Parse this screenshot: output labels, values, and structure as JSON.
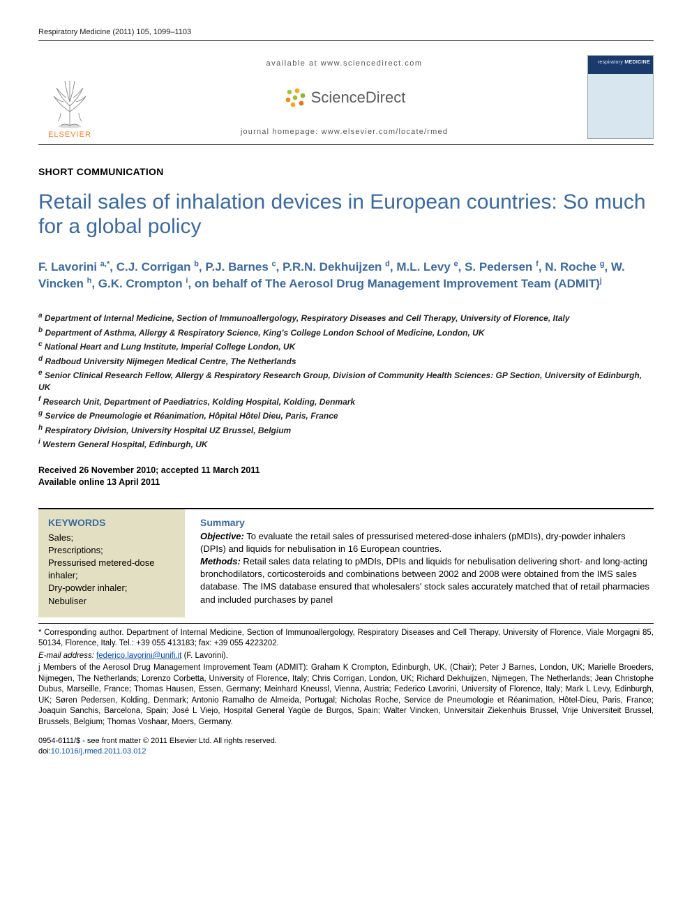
{
  "journal_ref": "Respiratory Medicine (2011) 105, 1099–1103",
  "masthead": {
    "available": "available at www.sciencedirect.com",
    "sd_text": "ScienceDirect",
    "homepage": "journal homepage: www.elsevier.com/locate/rmed",
    "elsevier": "ELSEVIER",
    "cover_small": "respiratory",
    "cover_bold": "MEDICINE"
  },
  "section_label": "SHORT COMMUNICATION",
  "title": "Retail sales of inhalation devices in European countries: So much for a global policy",
  "authors_html": "F. Lavorini <sup>a,*</sup>, C.J. Corrigan <sup>b</sup>, P.J. Barnes <sup>c</sup>, P.R.N. Dekhuijzen <sup>d</sup>, M.L. Levy <sup>e</sup>, S. Pedersen <sup>f</sup>, N. Roche <sup>g</sup>, W. Vincken <sup>h</sup>, G.K. Crompton <sup>i</sup>, on behalf of The Aerosol Drug Management Improvement Team (ADMIT)<sup>j</sup>",
  "affiliations": [
    "a Department of Internal Medicine, Section of Immunoallergology, Respiratory Diseases and Cell Therapy, University of Florence, Italy",
    "b Department of Asthma, Allergy & Respiratory Science, King's College London School of Medicine, London, UK",
    "c National Heart and Lung Institute, Imperial College London, UK",
    "d Radboud University Nijmegen Medical Centre, The Netherlands",
    "e Senior Clinical Research Fellow, Allergy & Respiratory Research Group, Division of Community Health Sciences: GP Section, University of Edinburgh, UK",
    "f Research Unit, Department of Paediatrics, Kolding Hospital, Kolding, Denmark",
    "g Service de Pneumologie et Réanimation, Hôpital Hôtel Dieu, Paris, France",
    "h Respiratory Division, University Hospital UZ Brussel, Belgium",
    "i Western General Hospital, Edinburgh, UK"
  ],
  "dates": {
    "received_accepted": "Received 26 November 2010; accepted 11 March 2011",
    "online": "Available online 13 April 2011"
  },
  "keywords": {
    "head": "KEYWORDS",
    "items": [
      "Sales;",
      "Prescriptions;",
      "Pressurised metered-dose inhaler;",
      "Dry-powder inhaler;",
      "Nebuliser"
    ]
  },
  "summary": {
    "head": "Summary",
    "objective_label": "Objective:",
    "objective": " To evaluate the retail sales of pressurised metered-dose inhalers (pMDIs), dry-powder inhalers (DPIs) and liquids for nebulisation in 16 European countries.",
    "methods_label": "Methods:",
    "methods": " Retail sales data relating to pMDIs, DPIs and liquids for nebulisation delivering short- and long-acting bronchodilators, corticosteroids and combinations between 2002 and 2008 were obtained from the IMS sales database. The IMS database ensured that wholesalers' stock sales accurately matched that of retail pharmacies and included purchases by panel"
  },
  "footnotes": {
    "corr": "* Corresponding author. Department of Internal Medicine, Section of Immunoallergology, Respiratory Diseases and Cell Therapy, University of Florence, Viale Morgagni 85, 50134, Florence, Italy. Tel.: +39 055 413183; fax: +39 055 4223202.",
    "email_label": "E-mail address:",
    "email": "federico.lavorini@unifi.it",
    "email_who": "(F. Lavorini).",
    "admit": "j Members of the Aerosol Drug Management Improvement Team (ADMIT): Graham K Crompton, Edinburgh, UK, (Chair); Peter J Barnes, London, UK; Marielle Broeders, Nijmegen, The Netherlands; Lorenzo Corbetta, University of Florence, Italy; Chris Corrigan, London, UK; Richard Dekhuijzen, Nijmegen, The Netherlands; Jean Christophe Dubus, Marseille, France; Thomas Hausen, Essen, Germany; Meinhard Kneussl, Vienna, Austria; Federico Lavorini, University of Florence, Italy; Mark L Levy, Edinburgh, UK; Søren Pedersen, Kolding, Denmark; Antonio Ramalho de Almeida, Portugal; Nicholas Roche, Service de Pneumologie et Réanimation, Hôtel-Dieu, Paris, France; Joaquin Sanchis, Barcelona, Spain; José L Viejo, Hospital General Yagüe de Burgos, Spain; Walter Vincken, Universitair Ziekenhuis Brussel, Vrije Universiteit Brussel, Brussels, Belgium; Thomas Voshaar, Moers, Germany."
  },
  "copyright": {
    "line1": "0954-6111/$ - see front matter © 2011 Elsevier Ltd. All rights reserved.",
    "doi_label": "doi:",
    "doi": "10.1016/j.rmed.2011.03.012"
  },
  "colors": {
    "title_blue": "#3b6aa0",
    "keywords_bg": "#e2dfc2",
    "elsevier_orange": "#ff7a1a",
    "cover_blue": "#1a3a6b",
    "link_blue": "#0046b8"
  }
}
